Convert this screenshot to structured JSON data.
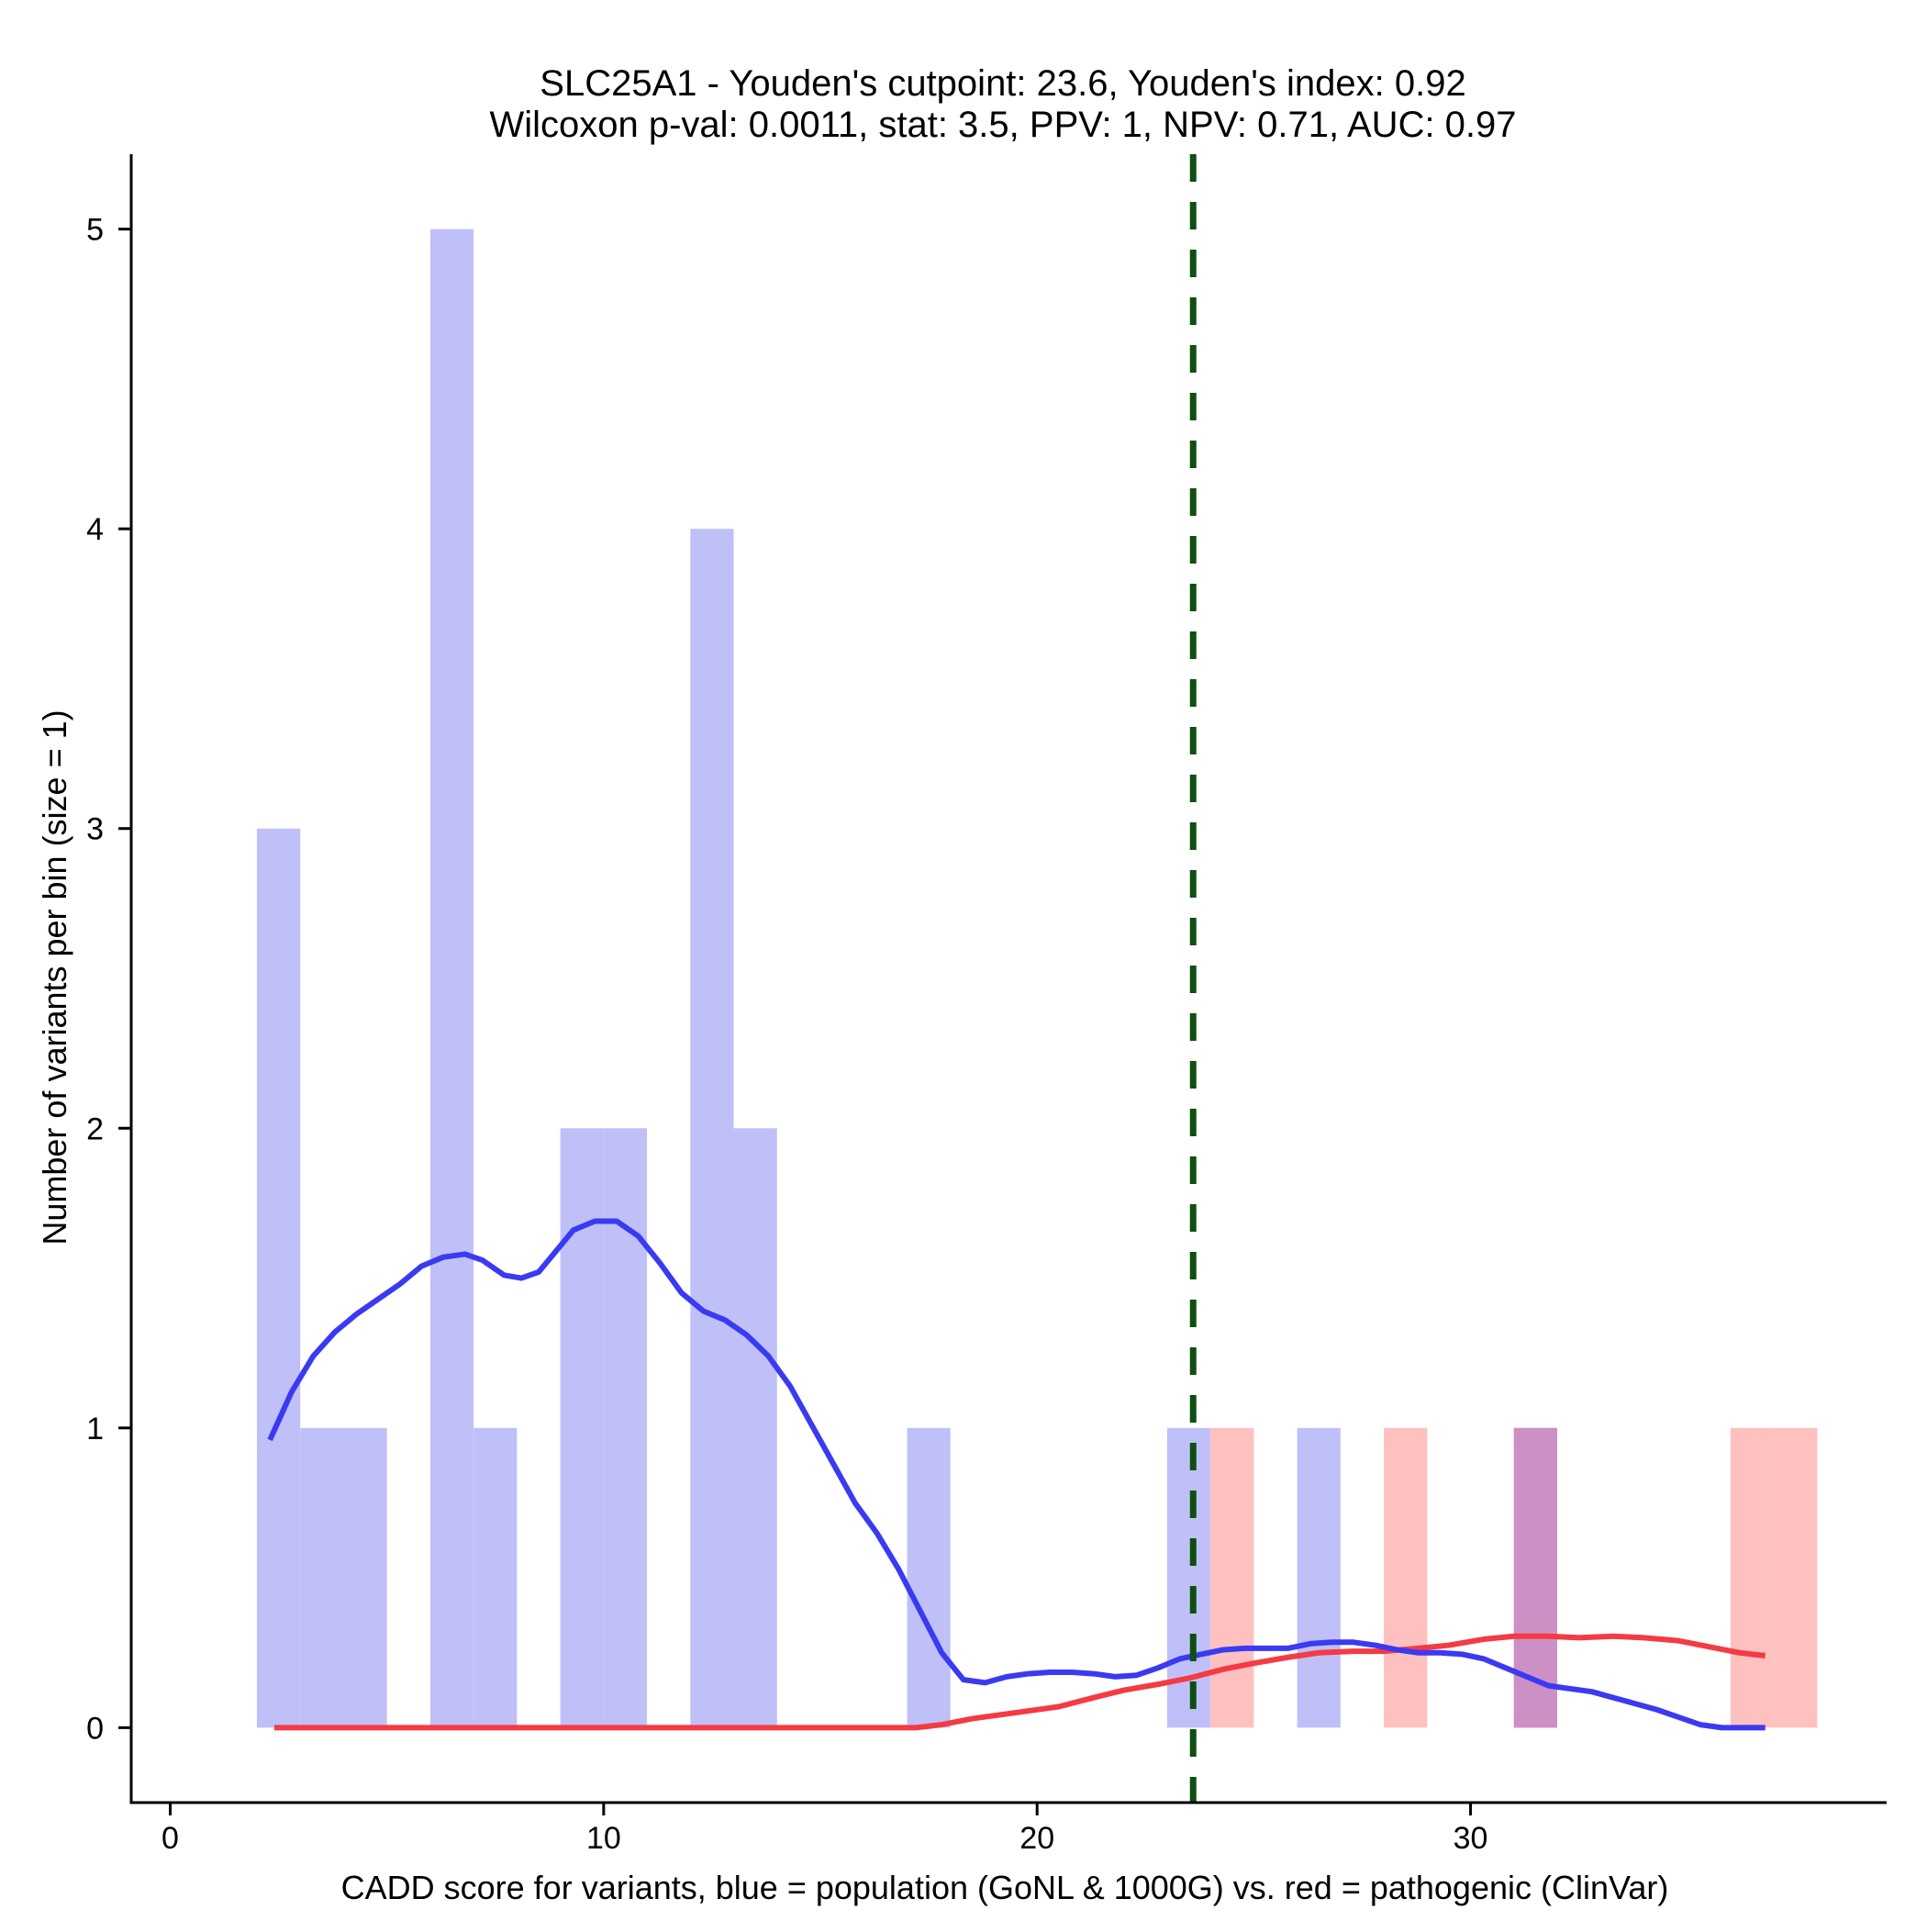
{
  "colors": {
    "population_bar": "#c0c0f8",
    "pathogenic_bar": "#ffc0c0",
    "overlap_bar": "#cc90c4",
    "population_line": "#3a3af2",
    "pathogenic_line": "#f53a44",
    "cutpoint_line": "#0f4f0f",
    "axis": "#000000"
  },
  "chart_data": {
    "type": "histogram-density",
    "title_line1": "SLC25A1 - Youden's cutpoint: 23.6, Youden's index: 0.92",
    "title_line2": "Wilcoxon p-val: 0.0011, stat: 3.5, PPV: 1, NPV: 0.71, AUC: 0.97",
    "xlabel": "CADD score for variants, blue = population (GoNL & 1000G) vs. red = pathogenic (ClinVar)",
    "ylabel": "Number of variants per bin (size = 1)",
    "xlim": [
      -0.9,
      39.6
    ],
    "ylim": [
      -0.25,
      5.25
    ],
    "x_ticks": [
      0,
      10,
      20,
      30
    ],
    "x_tick_labels": [
      "0",
      "10",
      "20",
      "30"
    ],
    "y_ticks": [
      0,
      1,
      2,
      3,
      4,
      5
    ],
    "y_tick_labels": [
      "0",
      "1",
      "2",
      "3",
      "4",
      "5"
    ],
    "bin_width": 1,
    "cutpoint": 23.6,
    "series": [
      {
        "name": "population (GoNL & 1000G)",
        "bins": [
          {
            "start": 2,
            "count": 3
          },
          {
            "start": 3,
            "count": 1
          },
          {
            "start": 4,
            "count": 1
          },
          {
            "start": 6,
            "count": 5
          },
          {
            "start": 7,
            "count": 1
          },
          {
            "start": 9,
            "count": 2
          },
          {
            "start": 10,
            "count": 2
          },
          {
            "start": 12,
            "count": 4
          },
          {
            "start": 13,
            "count": 2
          },
          {
            "start": 17,
            "count": 1
          },
          {
            "start": 23,
            "count": 1
          },
          {
            "start": 26,
            "count": 1
          },
          {
            "start": 31,
            "count": 1
          }
        ],
        "density_curve": [
          [
            2.3,
            0.96
          ],
          [
            2.8,
            1.12
          ],
          [
            3.3,
            1.24
          ],
          [
            3.8,
            1.32
          ],
          [
            4.3,
            1.38
          ],
          [
            4.8,
            1.43
          ],
          [
            5.3,
            1.48
          ],
          [
            5.8,
            1.54
          ],
          [
            6.3,
            1.57
          ],
          [
            6.8,
            1.58
          ],
          [
            7.2,
            1.56
          ],
          [
            7.7,
            1.51
          ],
          [
            8.1,
            1.5
          ],
          [
            8.5,
            1.52
          ],
          [
            8.9,
            1.59
          ],
          [
            9.3,
            1.66
          ],
          [
            9.8,
            1.69
          ],
          [
            10.3,
            1.69
          ],
          [
            10.8,
            1.64
          ],
          [
            11.3,
            1.55
          ],
          [
            11.8,
            1.45
          ],
          [
            12.3,
            1.39
          ],
          [
            12.8,
            1.36
          ],
          [
            13.3,
            1.31
          ],
          [
            13.8,
            1.24
          ],
          [
            14.3,
            1.14
          ],
          [
            14.8,
            1.01
          ],
          [
            15.3,
            0.88
          ],
          [
            15.8,
            0.75
          ],
          [
            16.3,
            0.65
          ],
          [
            16.8,
            0.53
          ],
          [
            17.3,
            0.39
          ],
          [
            17.8,
            0.25
          ],
          [
            18.3,
            0.16
          ],
          [
            18.8,
            0.15
          ],
          [
            19.3,
            0.17
          ],
          [
            19.8,
            0.18
          ],
          [
            20.3,
            0.185
          ],
          [
            20.8,
            0.185
          ],
          [
            21.3,
            0.18
          ],
          [
            21.8,
            0.17
          ],
          [
            22.3,
            0.175
          ],
          [
            22.8,
            0.2
          ],
          [
            23.3,
            0.23
          ],
          [
            23.8,
            0.245
          ],
          [
            24.3,
            0.26
          ],
          [
            24.8,
            0.265
          ],
          [
            25.3,
            0.265
          ],
          [
            25.8,
            0.265
          ],
          [
            26.3,
            0.28
          ],
          [
            26.8,
            0.285
          ],
          [
            27.3,
            0.285
          ],
          [
            27.8,
            0.275
          ],
          [
            28.3,
            0.26
          ],
          [
            28.8,
            0.25
          ],
          [
            29.3,
            0.25
          ],
          [
            29.8,
            0.245
          ],
          [
            30.3,
            0.23
          ],
          [
            30.8,
            0.2
          ],
          [
            31.3,
            0.17
          ],
          [
            31.8,
            0.14
          ],
          [
            32.3,
            0.13
          ],
          [
            32.8,
            0.12
          ],
          [
            33.3,
            0.1
          ],
          [
            33.8,
            0.08
          ],
          [
            34.3,
            0.06
          ],
          [
            34.8,
            0.035
          ],
          [
            35.3,
            0.01
          ],
          [
            35.8,
            0.0
          ],
          [
            36.3,
            0.0
          ],
          [
            36.8,
            0.0
          ]
        ]
      },
      {
        "name": "pathogenic (ClinVar)",
        "bins": [
          {
            "start": 24,
            "count": 1
          },
          {
            "start": 28,
            "count": 1
          },
          {
            "start": 31,
            "count": 1
          },
          {
            "start": 36,
            "count": 1
          },
          {
            "start": 37,
            "count": 1
          }
        ],
        "density_curve": [
          [
            2.4,
            0.0
          ],
          [
            5.0,
            0.0
          ],
          [
            10.0,
            0.0
          ],
          [
            15.0,
            0.0
          ],
          [
            17.2,
            0.0
          ],
          [
            17.8,
            0.01
          ],
          [
            18.5,
            0.03
          ],
          [
            19.5,
            0.05
          ],
          [
            20.5,
            0.07
          ],
          [
            21.3,
            0.1
          ],
          [
            22.0,
            0.125
          ],
          [
            22.8,
            0.145
          ],
          [
            23.5,
            0.165
          ],
          [
            24.3,
            0.195
          ],
          [
            25.0,
            0.215
          ],
          [
            25.8,
            0.235
          ],
          [
            26.5,
            0.25
          ],
          [
            27.3,
            0.255
          ],
          [
            28.0,
            0.255
          ],
          [
            28.8,
            0.265
          ],
          [
            29.5,
            0.275
          ],
          [
            30.3,
            0.295
          ],
          [
            31.0,
            0.305
          ],
          [
            31.8,
            0.305
          ],
          [
            32.5,
            0.3
          ],
          [
            33.3,
            0.305
          ],
          [
            34.0,
            0.3
          ],
          [
            34.8,
            0.29
          ],
          [
            35.5,
            0.27
          ],
          [
            36.2,
            0.25
          ],
          [
            36.8,
            0.24
          ]
        ]
      }
    ],
    "overlap_bins": [
      {
        "start": 31,
        "count": 1
      }
    ]
  }
}
